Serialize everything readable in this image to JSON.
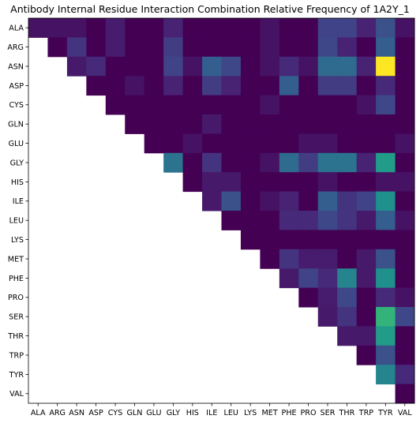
{
  "chart_data": {
    "type": "heatmap",
    "title": "Antibody Internal Residue Interaction Combination Relative Frequency of 1A2Y_1",
    "xlabel": "",
    "ylabel": "",
    "colormap": "viridis",
    "value_range": [
      0,
      1
    ],
    "grid": false,
    "lower_triangle": "empty",
    "x_categories": [
      "ALA",
      "ARG",
      "ASN",
      "ASP",
      "CYS",
      "GLN",
      "GLU",
      "GLY",
      "HIS",
      "ILE",
      "LEU",
      "LYS",
      "MET",
      "PHE",
      "PRO",
      "SER",
      "THR",
      "TRP",
      "TYR",
      "VAL"
    ],
    "y_categories": [
      "ALA",
      "ARG",
      "ASN",
      "ASP",
      "CYS",
      "GLN",
      "GLU",
      "GLY",
      "HIS",
      "ILE",
      "LEU",
      "LYS",
      "MET",
      "PHE",
      "PRO",
      "SER",
      "THR",
      "TRP",
      "TYR",
      "VAL"
    ],
    "values": [
      [
        0.05,
        0.05,
        0.05,
        0.0,
        0.08,
        0.0,
        0.0,
        0.1,
        0.0,
        0.0,
        0.0,
        0.0,
        0.05,
        0.0,
        0.0,
        0.2,
        0.2,
        0.1,
        0.25,
        0.05
      ],
      [
        null,
        0.0,
        0.15,
        0.0,
        0.08,
        0.0,
        0.0,
        0.18,
        0.0,
        0.0,
        0.0,
        0.0,
        0.05,
        0.0,
        0.0,
        0.22,
        0.1,
        0.0,
        0.3,
        0.0
      ],
      [
        null,
        null,
        0.07,
        0.12,
        0.0,
        0.0,
        0.0,
        0.2,
        0.05,
        0.3,
        0.22,
        0.0,
        0.05,
        0.12,
        0.05,
        0.35,
        0.35,
        0.1,
        1.0,
        0.0
      ],
      [
        null,
        null,
        null,
        0.0,
        0.0,
        0.05,
        0.0,
        0.1,
        0.0,
        0.18,
        0.1,
        0.0,
        0.0,
        0.3,
        0.0,
        0.18,
        0.18,
        0.0,
        0.12,
        0.0
      ],
      [
        null,
        null,
        null,
        null,
        0.0,
        0.0,
        0.0,
        0.0,
        0.0,
        0.0,
        0.0,
        0.0,
        0.05,
        0.0,
        0.0,
        0.0,
        0.0,
        0.05,
        0.22,
        0.0
      ],
      [
        null,
        null,
        null,
        null,
        null,
        0.0,
        0.0,
        0.0,
        0.0,
        0.07,
        0.0,
        0.0,
        0.0,
        0.0,
        0.0,
        0.0,
        0.0,
        0.0,
        0.0,
        0.0
      ],
      [
        null,
        null,
        null,
        null,
        null,
        null,
        0.0,
        0.0,
        0.05,
        0.0,
        0.0,
        0.0,
        0.0,
        0.0,
        0.05,
        0.05,
        0.0,
        0.0,
        0.0,
        0.05
      ],
      [
        null,
        null,
        null,
        null,
        null,
        null,
        null,
        0.38,
        0.0,
        0.15,
        0.0,
        0.0,
        0.05,
        0.35,
        0.18,
        0.38,
        0.38,
        0.1,
        0.55,
        0.0
      ],
      [
        null,
        null,
        null,
        null,
        null,
        null,
        null,
        null,
        0.0,
        0.07,
        0.07,
        0.0,
        0.0,
        0.0,
        0.0,
        0.05,
        0.0,
        0.0,
        0.05,
        0.05
      ],
      [
        null,
        null,
        null,
        null,
        null,
        null,
        null,
        null,
        null,
        0.07,
        0.25,
        0.0,
        0.05,
        0.1,
        0.0,
        0.3,
        0.15,
        0.2,
        0.5,
        0.0
      ],
      [
        null,
        null,
        null,
        null,
        null,
        null,
        null,
        null,
        null,
        null,
        0.0,
        0.0,
        0.0,
        0.12,
        0.12,
        0.22,
        0.15,
        0.07,
        0.3,
        0.05
      ],
      [
        null,
        null,
        null,
        null,
        null,
        null,
        null,
        null,
        null,
        null,
        null,
        0.0,
        0.0,
        0.0,
        0.0,
        0.0,
        0.0,
        0.0,
        0.0,
        0.0
      ],
      [
        null,
        null,
        null,
        null,
        null,
        null,
        null,
        null,
        null,
        null,
        null,
        null,
        0.0,
        0.15,
        0.08,
        0.08,
        0.0,
        0.07,
        0.25,
        0.0
      ],
      [
        null,
        null,
        null,
        null,
        null,
        null,
        null,
        null,
        null,
        null,
        null,
        null,
        null,
        0.07,
        0.2,
        0.12,
        0.45,
        0.07,
        0.5,
        0.0
      ],
      [
        null,
        null,
        null,
        null,
        null,
        null,
        null,
        null,
        null,
        null,
        null,
        null,
        null,
        null,
        0.0,
        0.08,
        0.22,
        0.0,
        0.12,
        0.05
      ],
      [
        null,
        null,
        null,
        null,
        null,
        null,
        null,
        null,
        null,
        null,
        null,
        null,
        null,
        null,
        null,
        0.07,
        0.15,
        0.0,
        0.65,
        0.22
      ],
      [
        null,
        null,
        null,
        null,
        null,
        null,
        null,
        null,
        null,
        null,
        null,
        null,
        null,
        null,
        null,
        null,
        0.07,
        0.07,
        0.55,
        0.0
      ],
      [
        null,
        null,
        null,
        null,
        null,
        null,
        null,
        null,
        null,
        null,
        null,
        null,
        null,
        null,
        null,
        null,
        null,
        0.0,
        0.25,
        0.0
      ],
      [
        null,
        null,
        null,
        null,
        null,
        null,
        null,
        null,
        null,
        null,
        null,
        null,
        null,
        null,
        null,
        null,
        null,
        null,
        0.45,
        0.12
      ],
      [
        null,
        null,
        null,
        null,
        null,
        null,
        null,
        null,
        null,
        null,
        null,
        null,
        null,
        null,
        null,
        null,
        null,
        null,
        null,
        0.0
      ]
    ]
  }
}
